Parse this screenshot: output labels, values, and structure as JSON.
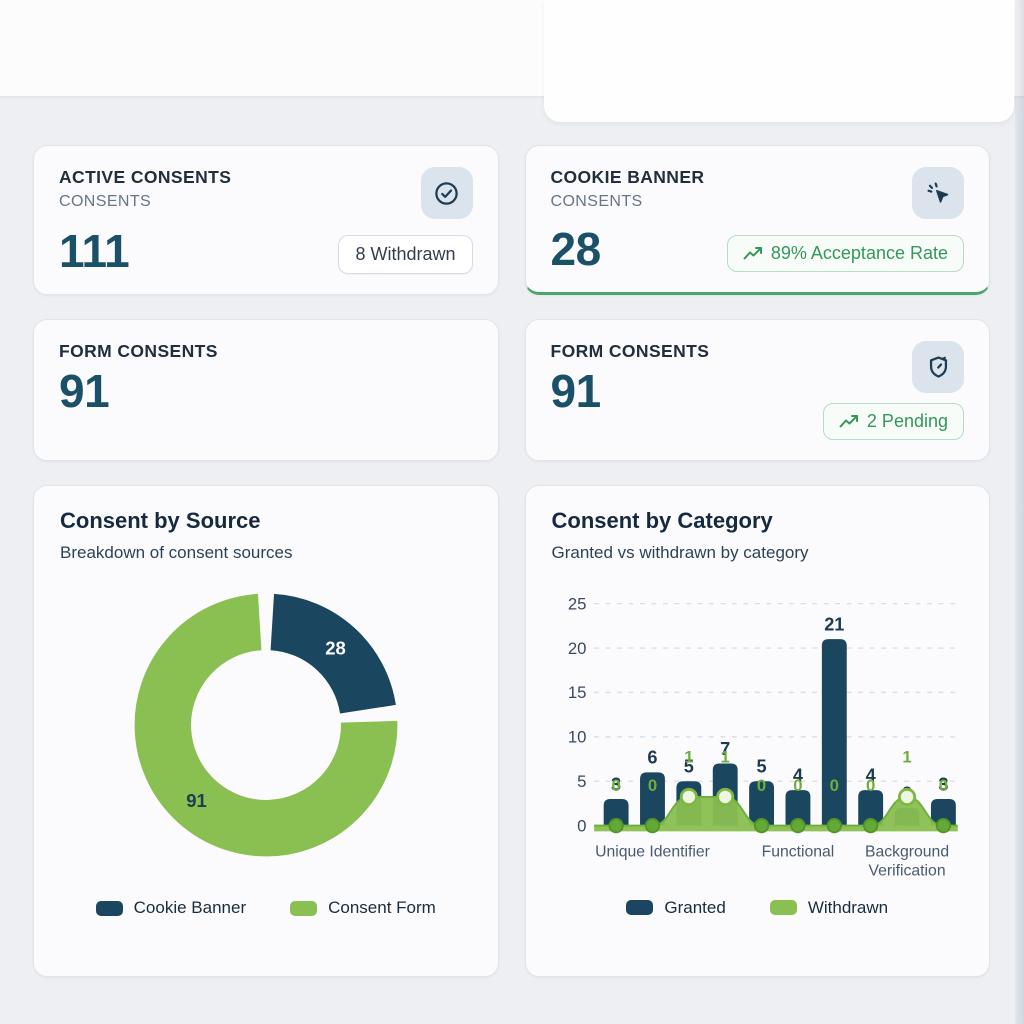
{
  "theme": {
    "navy": "#1a4660",
    "green": "#8abf51",
    "green_dark": "#6faf3b",
    "green_text": "#33985a",
    "value_color": "#1a5068",
    "page_bg": "#edeff3",
    "card_bg": "#fbfbfd"
  },
  "stat_cards": [
    {
      "title": "ACTIVE CONSENTS",
      "subtitle": "CONSENTS",
      "value": "111",
      "badge_text": "8 Withdrawn",
      "badge_type": "neutral",
      "icon": "check-circle"
    },
    {
      "title": "COOKIE BANNER",
      "subtitle": "CONSENTS",
      "value": "28",
      "badge_text": "89% Acceptance Rate",
      "badge_type": "positive",
      "icon": "cursor-click"
    },
    {
      "title": "FORM CONSENTS",
      "subtitle": "",
      "value": "91",
      "badge_text": "",
      "badge_type": "",
      "icon": ""
    },
    {
      "title": "FORM CONSENTS",
      "subtitle": "",
      "value": "91",
      "badge_text": "2 Pending",
      "badge_type": "positive",
      "icon": "shield-clock"
    }
  ],
  "chart_data": [
    {
      "type": "pie",
      "donut": true,
      "title": "Consent by Source",
      "subtitle": "Breakdown of consent sources",
      "labels": [
        "Cookie Banner",
        "Consent Form"
      ],
      "values": [
        28,
        91
      ],
      "colors": [
        "#1a4660",
        "#8abf51"
      ],
      "legend_position": "bottom"
    },
    {
      "type": "bar",
      "title": "Consent by Category",
      "subtitle": "Granted vs withdrawn by category",
      "categories": [
        "",
        "Unique Identifier",
        "",
        "",
        "",
        "Functional",
        "",
        "",
        "Background Verification",
        ""
      ],
      "x_labels": [
        {
          "index": 1,
          "text": "Unique Identifier"
        },
        {
          "index": 5,
          "text": "Functional"
        },
        {
          "index": 8,
          "text": "Background\nVerification"
        }
      ],
      "series": [
        {
          "name": "Granted",
          "color": "#1a4660",
          "values": [
            3,
            6,
            5,
            7,
            5,
            4,
            21,
            4,
            2,
            3
          ]
        },
        {
          "name": "Withdrawn",
          "color": "#8abf51",
          "values": [
            0,
            0,
            1,
            1,
            0,
            0,
            0,
            0,
            1,
            0
          ]
        }
      ],
      "ylim": [
        0,
        25
      ],
      "yticks": [
        0,
        5,
        10,
        15,
        20,
        25
      ],
      "grid": "dashed",
      "legend_position": "bottom"
    }
  ]
}
